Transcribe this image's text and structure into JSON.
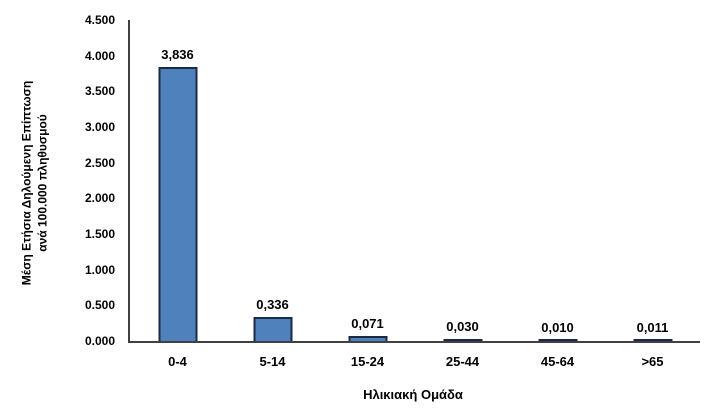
{
  "chart_data": {
    "type": "bar",
    "categories": [
      "0-4",
      "5-14",
      "15-24",
      "25-44",
      "45-64",
      ">65"
    ],
    "values": [
      3.836,
      0.336,
      0.071,
      0.03,
      0.01,
      0.011
    ],
    "value_labels": [
      "3,836",
      "0,336",
      "0,071",
      "0,030",
      "0,010",
      "0,011"
    ],
    "title": "",
    "xlabel": "Ηλικιακή Ομάδα",
    "ylabel_line1": "Μέση Ετήσια Δηλούμενη Επίπτωση",
    "ylabel_line2": "ανά 100.000 πληθυσμού",
    "ylim": [
      0,
      4.5
    ],
    "ytick_step": 0.5,
    "ytick_labels": [
      "0.000",
      "0.500",
      "1.000",
      "1.500",
      "2.000",
      "2.500",
      "3.000",
      "3.500",
      "4.000",
      "4.500"
    ],
    "grid": false,
    "legend_position": "none",
    "bar_fill_color": "#4F81BD",
    "bar_border_color": "#1B2A44",
    "axis_line_color": "#404040",
    "text_color": "#000000",
    "background_color": "#FFFFFF"
  }
}
